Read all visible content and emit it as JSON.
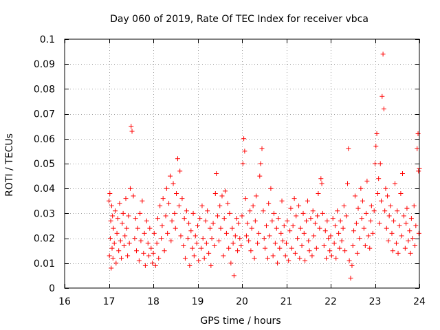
{
  "chart_data": {
    "type": "scatter",
    "title": "Day 060 of 2019, Rate Of TEC Index for receiver vbca",
    "xlabel": "GPS time / hours",
    "ylabel": "ROTI / TECUs",
    "xlim": [
      16,
      24
    ],
    "ylim": [
      0,
      0.1
    ],
    "x_ticks": [
      16,
      17,
      18,
      19,
      20,
      21,
      22,
      23,
      24
    ],
    "x_tick_labels": [
      "16",
      "17",
      "18",
      "19",
      "20",
      "21",
      "22",
      "23",
      "24"
    ],
    "y_ticks": [
      0,
      0.01,
      0.02,
      0.03,
      0.04,
      0.05,
      0.06,
      0.07,
      0.08,
      0.09,
      0.1
    ],
    "y_tick_labels": [
      "0",
      "0.01",
      "0.02",
      "0.03",
      "0.04",
      "0.05",
      "0.06",
      "0.07",
      "0.08",
      "0.09",
      "0.1"
    ],
    "grid": true,
    "marker": "+",
    "series": [
      {
        "name": "ROTI",
        "color": "#ff0000",
        "x": [
          17.0,
          17.01,
          17.02,
          17.03,
          17.04,
          17.05,
          17.06,
          17.07,
          17.08,
          17.09,
          17.1,
          17.12,
          17.14,
          17.16,
          17.18,
          17.2,
          17.22,
          17.24,
          17.26,
          17.28,
          17.3,
          17.32,
          17.34,
          17.36,
          17.38,
          17.4,
          17.42,
          17.44,
          17.46,
          17.48,
          17.5,
          17.52,
          17.55,
          17.58,
          17.6,
          17.62,
          17.65,
          17.68,
          17.7,
          17.72,
          17.75,
          17.78,
          17.8,
          17.82,
          17.85,
          17.88,
          17.9,
          17.92,
          17.95,
          17.98,
          18.0,
          18.02,
          18.05,
          18.08,
          18.1,
          18.12,
          18.15,
          18.18,
          18.2,
          18.22,
          18.25,
          18.28,
          18.3,
          18.32,
          18.35,
          18.38,
          18.4,
          18.42,
          18.45,
          18.48,
          18.5,
          18.52,
          18.55,
          18.58,
          18.6,
          18.62,
          18.65,
          18.68,
          18.7,
          18.72,
          18.75,
          18.78,
          18.8,
          18.82,
          18.85,
          18.88,
          18.9,
          18.92,
          18.95,
          18.98,
          19.0,
          19.02,
          19.05,
          19.08,
          19.1,
          19.12,
          19.15,
          19.18,
          19.2,
          19.22,
          19.25,
          19.28,
          19.3,
          19.32,
          19.35,
          19.38,
          19.4,
          19.42,
          19.45,
          19.48,
          19.5,
          19.52,
          19.55,
          19.58,
          19.6,
          19.62,
          19.65,
          19.68,
          19.7,
          19.72,
          19.75,
          19.78,
          19.8,
          19.82,
          19.85,
          19.88,
          19.9,
          19.92,
          19.95,
          19.98,
          20.0,
          20.02,
          20.04,
          20.06,
          20.08,
          20.1,
          20.12,
          20.15,
          20.18,
          20.2,
          20.22,
          20.25,
          20.28,
          20.3,
          20.32,
          20.35,
          20.38,
          20.4,
          20.42,
          20.45,
          20.48,
          20.5,
          20.52,
          20.55,
          20.58,
          20.6,
          20.62,
          20.65,
          20.68,
          20.7,
          20.72,
          20.75,
          20.78,
          20.8,
          20.82,
          20.85,
          20.88,
          20.9,
          20.92,
          20.95,
          20.98,
          21.0,
          21.02,
          21.05,
          21.08,
          21.1,
          21.12,
          21.15,
          21.18,
          21.2,
          21.22,
          21.25,
          21.28,
          21.3,
          21.32,
          21.35,
          21.38,
          21.4,
          21.42,
          21.45,
          21.48,
          21.5,
          21.52,
          21.55,
          21.58,
          21.6,
          21.62,
          21.65,
          21.68,
          21.7,
          21.72,
          21.75,
          21.78,
          21.8,
          21.82,
          21.85,
          21.88,
          21.9,
          21.92,
          21.95,
          21.98,
          22.0,
          22.02,
          22.05,
          22.08,
          22.1,
          22.12,
          22.15,
          22.18,
          22.2,
          22.22,
          22.25,
          22.28,
          22.3,
          22.32,
          22.35,
          22.38,
          22.4,
          22.42,
          22.45,
          22.48,
          22.5,
          22.52,
          22.55,
          22.58,
          22.6,
          22.62,
          22.65,
          22.68,
          22.7,
          22.72,
          22.75,
          22.78,
          22.8,
          22.82,
          22.85,
          22.88,
          22.9,
          22.92,
          22.95,
          22.98,
          23.0,
          23.02,
          23.04,
          23.06,
          23.08,
          23.1,
          23.12,
          23.14,
          23.16,
          23.18,
          23.2,
          23.22,
          23.24,
          23.26,
          23.28,
          23.3,
          23.32,
          23.35,
          23.38,
          23.4,
          23.42,
          23.45,
          23.48,
          23.5,
          23.52,
          23.55,
          23.58,
          23.6,
          23.62,
          23.65,
          23.68,
          23.7,
          23.72,
          23.75,
          23.78,
          23.8,
          23.82,
          23.85,
          23.88,
          23.9,
          23.92,
          23.95,
          23.97,
          23.98,
          23.99,
          24.0
        ],
        "y": [
          0.035,
          0.013,
          0.038,
          0.02,
          0.027,
          0.008,
          0.033,
          0.016,
          0.029,
          0.012,
          0.024,
          0.018,
          0.031,
          0.01,
          0.022,
          0.028,
          0.015,
          0.034,
          0.019,
          0.012,
          0.026,
          0.03,
          0.017,
          0.021,
          0.036,
          0.024,
          0.013,
          0.029,
          0.018,
          0.04,
          0.065,
          0.063,
          0.037,
          0.02,
          0.028,
          0.015,
          0.024,
          0.011,
          0.03,
          0.019,
          0.035,
          0.014,
          0.022,
          0.009,
          0.027,
          0.018,
          0.013,
          0.024,
          0.016,
          0.01,
          0.014,
          0.022,
          0.009,
          0.018,
          0.028,
          0.012,
          0.033,
          0.02,
          0.025,
          0.036,
          0.015,
          0.029,
          0.04,
          0.022,
          0.034,
          0.045,
          0.019,
          0.027,
          0.042,
          0.03,
          0.024,
          0.038,
          0.052,
          0.033,
          0.047,
          0.021,
          0.036,
          0.017,
          0.028,
          0.012,
          0.031,
          0.02,
          0.026,
          0.009,
          0.023,
          0.016,
          0.03,
          0.013,
          0.021,
          0.018,
          0.025,
          0.011,
          0.028,
          0.016,
          0.033,
          0.02,
          0.012,
          0.027,
          0.018,
          0.031,
          0.014,
          0.024,
          0.009,
          0.02,
          0.026,
          0.017,
          0.038,
          0.046,
          0.029,
          0.019,
          0.033,
          0.024,
          0.037,
          0.013,
          0.028,
          0.039,
          0.022,
          0.034,
          0.016,
          0.03,
          0.01,
          0.024,
          0.018,
          0.005,
          0.021,
          0.028,
          0.015,
          0.026,
          0.02,
          0.017,
          0.029,
          0.05,
          0.06,
          0.055,
          0.036,
          0.021,
          0.026,
          0.019,
          0.031,
          0.015,
          0.024,
          0.033,
          0.012,
          0.027,
          0.037,
          0.018,
          0.022,
          0.045,
          0.05,
          0.056,
          0.031,
          0.02,
          0.016,
          0.025,
          0.012,
          0.034,
          0.021,
          0.04,
          0.027,
          0.013,
          0.03,
          0.018,
          0.024,
          0.01,
          0.028,
          0.016,
          0.022,
          0.035,
          0.019,
          0.025,
          0.013,
          0.018,
          0.027,
          0.011,
          0.023,
          0.032,
          0.016,
          0.025,
          0.036,
          0.014,
          0.029,
          0.02,
          0.033,
          0.012,
          0.024,
          0.017,
          0.03,
          0.022,
          0.011,
          0.027,
          0.035,
          0.019,
          0.015,
          0.028,
          0.013,
          0.031,
          0.021,
          0.026,
          0.016,
          0.029,
          0.038,
          0.024,
          0.044,
          0.042,
          0.03,
          0.017,
          0.023,
          0.012,
          0.027,
          0.02,
          0.015,
          0.021,
          0.013,
          0.028,
          0.018,
          0.025,
          0.012,
          0.031,
          0.022,
          0.016,
          0.027,
          0.019,
          0.024,
          0.033,
          0.015,
          0.029,
          0.042,
          0.056,
          0.011,
          0.004,
          0.009,
          0.017,
          0.023,
          0.037,
          0.026,
          0.014,
          0.032,
          0.02,
          0.04,
          0.028,
          0.035,
          0.024,
          0.017,
          0.03,
          0.043,
          0.021,
          0.016,
          0.027,
          0.033,
          0.022,
          0.031,
          0.05,
          0.057,
          0.062,
          0.038,
          0.044,
          0.026,
          0.05,
          0.035,
          0.077,
          0.094,
          0.072,
          0.031,
          0.04,
          0.024,
          0.037,
          0.019,
          0.029,
          0.033,
          0.022,
          0.015,
          0.027,
          0.042,
          0.018,
          0.031,
          0.014,
          0.025,
          0.038,
          0.021,
          0.046,
          0.029,
          0.016,
          0.026,
          0.032,
          0.019,
          0.023,
          0.014,
          0.028,
          0.02,
          0.033,
          0.017,
          0.025,
          0.056,
          0.062,
          0.047,
          0.022,
          0.048
        ]
      }
    ]
  }
}
